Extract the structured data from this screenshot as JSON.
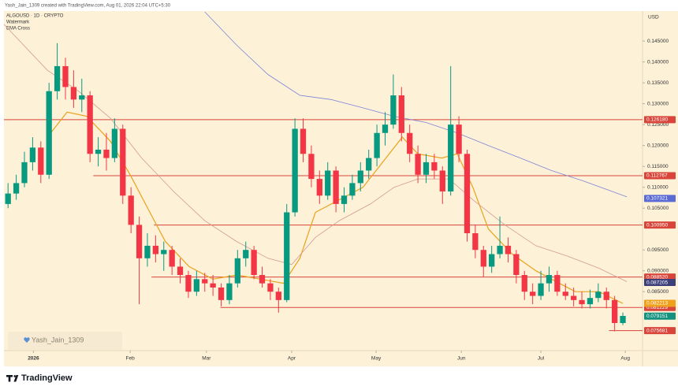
{
  "header": "Yash_Jain_1309 created with TradingView.com, Aug 01, 2026 22:04 UTC+5:30",
  "legend": [
    "ALGOUSD · 1D · CRYPTO",
    "Watermark",
    "EMA Cross"
  ],
  "watermark": "Yash_Jain_1309",
  "footer": "TradingView",
  "chart_data": {
    "type": "candlestick",
    "currency": "USD",
    "up_color": "#089981",
    "down_color": "#f23645",
    "ohlc": [
      [
        0.106,
        0.111,
        0.105,
        0.1085
      ],
      [
        0.1085,
        0.113,
        0.107,
        0.111
      ],
      [
        0.111,
        0.1185,
        0.11,
        0.116
      ],
      [
        0.116,
        0.122,
        0.114,
        0.1195
      ],
      [
        0.1195,
        0.121,
        0.111,
        0.113
      ],
      [
        0.113,
        0.135,
        0.112,
        0.133
      ],
      [
        0.133,
        0.1445,
        0.131,
        0.139
      ],
      [
        0.139,
        0.141,
        0.131,
        0.134
      ],
      [
        0.134,
        0.138,
        0.129,
        0.131
      ],
      [
        0.131,
        0.136,
        0.128,
        0.132
      ],
      [
        0.132,
        0.133,
        0.116,
        0.118
      ],
      [
        0.118,
        0.122,
        0.115,
        0.119
      ],
      [
        0.119,
        0.123,
        0.114,
        0.117
      ],
      [
        0.117,
        0.1265,
        0.116,
        0.124
      ],
      [
        0.124,
        0.125,
        0.106,
        0.108
      ],
      [
        0.108,
        0.11,
        0.099,
        0.101
      ],
      [
        0.101,
        0.103,
        0.082,
        0.093
      ],
      [
        0.093,
        0.099,
        0.091,
        0.096
      ],
      [
        0.096,
        0.0985,
        0.092,
        0.094
      ],
      [
        0.094,
        0.097,
        0.09,
        0.095
      ],
      [
        0.095,
        0.096,
        0.089,
        0.091
      ],
      [
        0.091,
        0.093,
        0.087,
        0.089
      ],
      [
        0.089,
        0.09,
        0.0835,
        0.085
      ],
      [
        0.085,
        0.09,
        0.084,
        0.088
      ],
      [
        0.088,
        0.0895,
        0.085,
        0.087
      ],
      [
        0.087,
        0.089,
        0.084,
        0.086
      ],
      [
        0.086,
        0.087,
        0.0815,
        0.083
      ],
      [
        0.083,
        0.089,
        0.082,
        0.087
      ],
      [
        0.087,
        0.095,
        0.086,
        0.093
      ],
      [
        0.093,
        0.097,
        0.091,
        0.095
      ],
      [
        0.095,
        0.096,
        0.088,
        0.089
      ],
      [
        0.089,
        0.091,
        0.086,
        0.087
      ],
      [
        0.087,
        0.088,
        0.083,
        0.085
      ],
      [
        0.085,
        0.086,
        0.08,
        0.083
      ],
      [
        0.083,
        0.106,
        0.0825,
        0.104
      ],
      [
        0.104,
        0.1265,
        0.103,
        0.124
      ],
      [
        0.124,
        0.1265,
        0.116,
        0.118
      ],
      [
        0.118,
        0.12,
        0.11,
        0.112
      ],
      [
        0.112,
        0.114,
        0.106,
        0.108
      ],
      [
        0.108,
        0.116,
        0.107,
        0.114
      ],
      [
        0.114,
        0.115,
        0.104,
        0.106
      ],
      [
        0.106,
        0.11,
        0.104,
        0.108
      ],
      [
        0.108,
        0.113,
        0.107,
        0.111
      ],
      [
        0.111,
        0.116,
        0.109,
        0.114
      ],
      [
        0.114,
        0.119,
        0.112,
        0.117
      ],
      [
        0.117,
        0.125,
        0.115,
        0.123
      ],
      [
        0.123,
        0.128,
        0.12,
        0.125
      ],
      [
        0.125,
        0.137,
        0.124,
        0.132
      ],
      [
        0.132,
        0.134,
        0.121,
        0.123
      ],
      [
        0.123,
        0.125,
        0.116,
        0.118
      ],
      [
        0.118,
        0.12,
        0.111,
        0.113
      ],
      [
        0.113,
        0.118,
        0.111,
        0.116
      ],
      [
        0.116,
        0.118,
        0.112,
        0.114
      ],
      [
        0.114,
        0.115,
        0.106,
        0.109
      ],
      [
        0.109,
        0.139,
        0.108,
        0.125
      ],
      [
        0.125,
        0.127,
        0.116,
        0.118
      ],
      [
        0.118,
        0.119,
        0.097,
        0.099
      ],
      [
        0.099,
        0.101,
        0.093,
        0.095
      ],
      [
        0.095,
        0.096,
        0.0885,
        0.091
      ],
      [
        0.091,
        0.096,
        0.0895,
        0.094
      ],
      [
        0.094,
        0.103,
        0.093,
        0.096
      ],
      [
        0.096,
        0.098,
        0.092,
        0.094
      ],
      [
        0.094,
        0.095,
        0.087,
        0.089
      ],
      [
        0.089,
        0.09,
        0.083,
        0.085
      ],
      [
        0.085,
        0.087,
        0.082,
        0.084
      ],
      [
        0.084,
        0.09,
        0.083,
        0.087
      ],
      [
        0.087,
        0.091,
        0.085,
        0.089
      ],
      [
        0.089,
        0.09,
        0.084,
        0.085
      ],
      [
        0.085,
        0.087,
        0.083,
        0.084
      ],
      [
        0.084,
        0.086,
        0.0815,
        0.083
      ],
      [
        0.083,
        0.085,
        0.081,
        0.082
      ],
      [
        0.082,
        0.0855,
        0.081,
        0.0835
      ],
      [
        0.0835,
        0.087,
        0.0825,
        0.085
      ],
      [
        0.085,
        0.086,
        0.081,
        0.083
      ],
      [
        0.083,
        0.084,
        0.0755,
        0.0775
      ],
      [
        0.0775,
        0.08,
        0.077,
        0.0792
      ]
    ],
    "series": [
      {
        "color": "#e9a21b",
        "x": [
          4.8,
          7.2,
          9.6,
          12.5,
          14.9,
          17.3,
          19.2,
          22.1,
          25,
          27.9,
          30.8,
          33.6,
          35.6,
          37.5,
          40.4,
          43.3,
          46.1,
          48.1,
          50,
          52.9,
          54.8,
          56.7,
          58.6,
          61.5,
          64.4,
          66.3,
          69.2,
          72.1,
          75
        ],
        "values": [
          0.122,
          0.128,
          0.127,
          0.121,
          0.113,
          0.104,
          0.097,
          0.091,
          0.088,
          0.089,
          0.088,
          0.087,
          0.093,
          0.104,
          0.107,
          0.11,
          0.117,
          0.122,
          0.118,
          0.117,
          0.118,
          0.11,
          0.1,
          0.094,
          0.09,
          0.088,
          0.085,
          0.085,
          0.0822
        ]
      },
      {
        "color": "#d39a93",
        "x": [
          -0.5,
          4.8,
          8.6,
          12.5,
          16.3,
          20.2,
          24,
          27.9,
          31.7,
          34.6,
          37.5,
          40.4,
          44.2,
          47.1,
          50,
          53.8,
          56.7,
          60.6,
          64.4,
          68.3,
          72.1,
          75.5
        ],
        "values": [
          0.149,
          0.138,
          0.133,
          0.1265,
          0.117,
          0.109,
          0.102,
          0.097,
          0.093,
          0.0915,
          0.098,
          0.102,
          0.106,
          0.11,
          0.112,
          0.112,
          0.107,
          0.101,
          0.096,
          0.0935,
          0.0906,
          0.0874
        ]
      },
      {
        "color": "#7e84d8",
        "x": [
          24,
          27.9,
          31.7,
          35.6,
          39.4,
          43.3,
          47.1,
          51,
          54.8,
          58.6,
          62.5,
          66.3,
          70.2,
          75.5
        ],
        "values": [
          0.152,
          0.144,
          0.137,
          0.132,
          0.131,
          0.129,
          0.127,
          0.1255,
          0.123,
          0.12,
          0.117,
          0.114,
          0.1115,
          0.1077
        ]
      }
    ],
    "levels": [
      {
        "value": 0.12618,
        "label": "0.126180",
        "from": -0.5
      },
      {
        "value": 0.112767,
        "label": "0.112767",
        "from": 10.4
      },
      {
        "value": 0.10095,
        "label": "0.100950",
        "from": 17.8
      },
      {
        "value": 0.08852,
        "label": "0.088520",
        "from": 17.5
      },
      {
        "value": 0.081229,
        "label": "0.081229",
        "from": 25.9
      },
      {
        "value": 0.075681,
        "label": "0.075681",
        "from": 73.3
      }
    ],
    "level_color": "#d9453a",
    "price_tags": [
      {
        "value": 0.107321,
        "label": "0.107321",
        "color": "#5b6bd6"
      },
      {
        "value": 0.087205,
        "label": "0.087205",
        "color": "#3b3f7a"
      },
      {
        "value": 0.082213,
        "label": "0.082213",
        "color": "#f0a11c"
      },
      {
        "value": 0.079151,
        "label": "0.079151",
        "color": "#14917f"
      }
    ],
    "xlim": [
      -0.5,
      77.4
    ],
    "ylim": [
      0.0709,
      0.152
    ],
    "xticks": [
      {
        "value": 3.1,
        "label": "2026"
      },
      {
        "value": 14.9,
        "label": "Feb"
      },
      {
        "value": 24.2,
        "label": "Mar"
      },
      {
        "value": 34.6,
        "label": "Apr"
      },
      {
        "value": 44.9,
        "label": "May"
      },
      {
        "value": 55.3,
        "label": "Jun"
      },
      {
        "value": 65.0,
        "label": "Jul"
      },
      {
        "value": 75.3,
        "label": "Aug"
      }
    ],
    "yticks": [
      {
        "value": 0.145,
        "label": "0.145000"
      },
      {
        "value": 0.14,
        "label": "0.140000"
      },
      {
        "value": 0.135,
        "label": "0.135000"
      },
      {
        "value": 0.13,
        "label": "0.130000"
      },
      {
        "value": 0.125,
        "label": "0.125000"
      },
      {
        "value": 0.12,
        "label": "0.120000"
      },
      {
        "value": 0.115,
        "label": "0.115000"
      },
      {
        "value": 0.11,
        "label": "0.110000"
      },
      {
        "value": 0.105,
        "label": "0.105000"
      },
      {
        "value": 0.095,
        "label": "0.095000"
      },
      {
        "value": 0.09,
        "label": "0.090000"
      },
      {
        "value": 0.085,
        "label": "0.085000"
      }
    ]
  }
}
